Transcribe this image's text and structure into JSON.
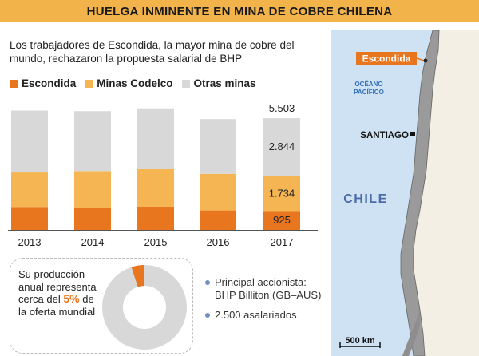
{
  "header": {
    "title": "HUELGA INMINENTE EN MINA DE COBRE CHILENA"
  },
  "intro": {
    "text": "Los trabajadores de Escondida, la mayor mina de cobre del mundo, rechazaron la propuesta salarial de BHP"
  },
  "colors": {
    "escondida": "#e8761f",
    "codelco": "#f5b553",
    "otras": "#d8d8d8",
    "banner": "#f2b34a",
    "sea": "#cfe2f3",
    "land": "#f3efe4"
  },
  "chart_data": {
    "type": "bar",
    "stacked": true,
    "categories": [
      "2013",
      "2014",
      "2015",
      "2016",
      "2017"
    ],
    "series": [
      {
        "name": "Escondida",
        "values": [
          1130,
          1100,
          1140,
          960,
          925
        ]
      },
      {
        "name": "Minas Codelco",
        "values": [
          1700,
          1800,
          1850,
          1800,
          1734
        ]
      },
      {
        "name": "Otras minas",
        "values": [
          3050,
          2950,
          3000,
          2700,
          2844
        ]
      }
    ],
    "labels_2017": {
      "escondida": "925",
      "codelco": "1.734",
      "otras": "2.844",
      "total": "5.503"
    },
    "ylim": [
      0,
      6000
    ],
    "grid": false
  },
  "donut": {
    "text_before": "Su producción anual representa cerca del ",
    "percent_label": "5%",
    "text_after": " de la oferta mundial",
    "share": 5
  },
  "facts": [
    "Principal accionista: BHP Billiton (GB–AUS)",
    "2.500 asalariados"
  ],
  "map": {
    "escondida_label": "Escondida",
    "ocean_label_1": "OCÉANO",
    "ocean_label_2": "PACÍFICO",
    "santiago_label": "SANTIAGO",
    "country_label": "CHILE",
    "scale_label": "500 km"
  }
}
